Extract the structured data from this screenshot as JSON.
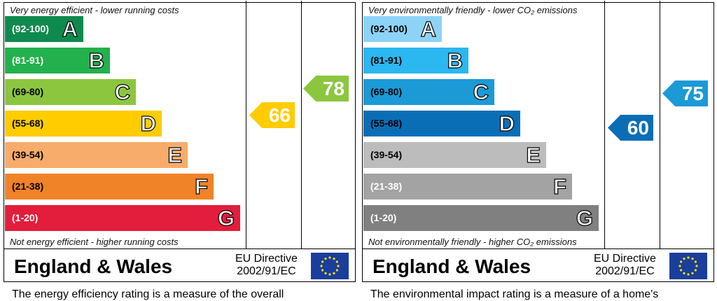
{
  "panels": [
    {
      "top_note": "Very energy efficient - lower running costs",
      "bands": [
        {
          "range": "(92-100)",
          "letter": "A",
          "color": "#0f8a4f"
        },
        {
          "range": "(81-91)",
          "letter": "B",
          "color": "#22b14c"
        },
        {
          "range": "(69-80)",
          "letter": "C",
          "color": "#8cc63f"
        },
        {
          "range": "(55-68)",
          "letter": "D",
          "color": "#ffcc00"
        },
        {
          "range": "(39-54)",
          "letter": "E",
          "color": "#f7ac6b"
        },
        {
          "range": "(21-38)",
          "letter": "F",
          "color": "#f08228"
        },
        {
          "range": "(1-20)",
          "letter": "G",
          "color": "#e31d3c"
        }
      ],
      "bottom_note": "Not energy efficient - higher running costs",
      "current": 66,
      "current_color": "#ffcc00",
      "potential": 78,
      "potential_color": "#8cc63f",
      "region": "England & Wales",
      "directive_1": "EU Directive",
      "directive_2": "2002/91/EC",
      "description": "The energy efficiency rating is a measure of the overall"
    },
    {
      "top_note": "Very environmentally friendly - lower CO₂ emissions",
      "bands": [
        {
          "range": "(92-100)",
          "letter": "A",
          "color": "#8dd3f7"
        },
        {
          "range": "(81-91)",
          "letter": "B",
          "color": "#2bb7f0"
        },
        {
          "range": "(69-80)",
          "letter": "C",
          "color": "#1b9ad6"
        },
        {
          "range": "(55-68)",
          "letter": "D",
          "color": "#0a6eb7"
        },
        {
          "range": "(39-54)",
          "letter": "E",
          "color": "#bcbcbc"
        },
        {
          "range": "(21-38)",
          "letter": "F",
          "color": "#a3a3a3"
        },
        {
          "range": "(1-20)",
          "letter": "G",
          "color": "#808080"
        }
      ],
      "bottom_note": "Not environmentally friendly - higher CO₂ emissions",
      "current": 60,
      "current_color": "#0a6eb7",
      "potential": 75,
      "potential_color": "#1b9ad6",
      "region": "England & Wales",
      "directive_1": "EU Directive",
      "directive_2": "2002/91/EC",
      "description": "The environmental impact rating is a measure of a home's"
    }
  ]
}
